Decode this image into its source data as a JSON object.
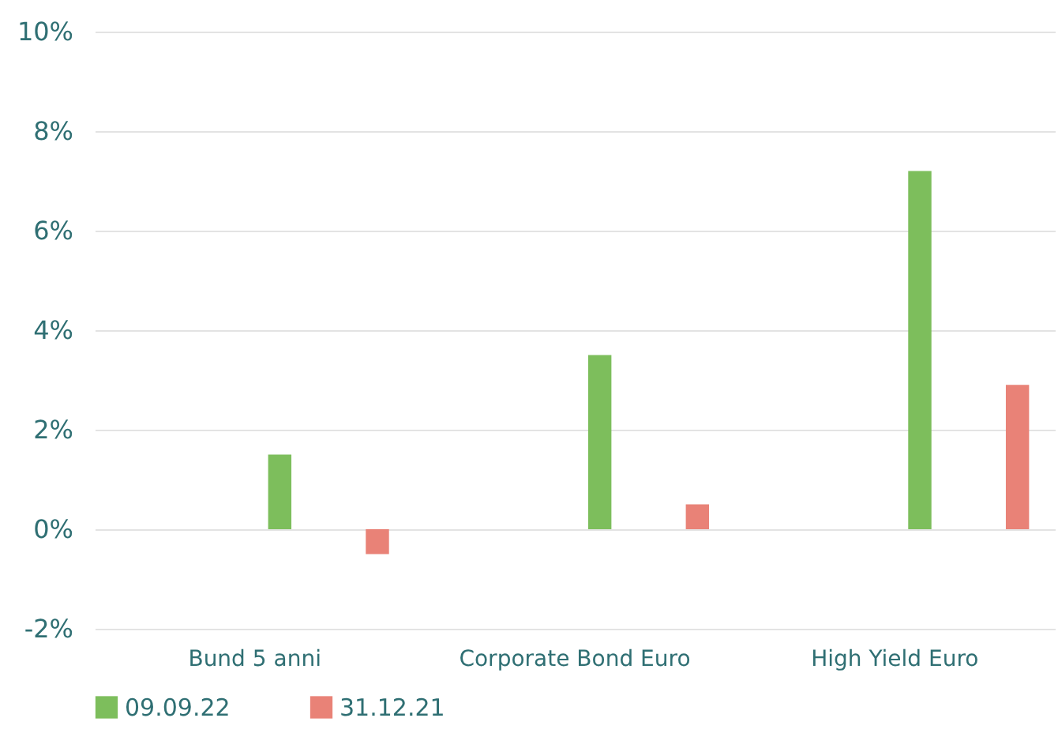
{
  "chart_data": {
    "type": "bar",
    "categories": [
      "Bund 5 anni",
      "Corporate Bond Euro",
      "High Yield Euro"
    ],
    "series": [
      {
        "name": "09.09.22",
        "color": "#7dbe5c",
        "values": [
          1.5,
          3.5,
          7.2
        ]
      },
      {
        "name": "31.12.21",
        "color": "#e98277",
        "values": [
          -0.5,
          0.5,
          2.9
        ]
      }
    ],
    "ylim": [
      -2,
      10
    ],
    "yticks": [
      {
        "value": -2,
        "label": "-2%"
      },
      {
        "value": 0,
        "label": "0%"
      },
      {
        "value": 2,
        "label": "2%"
      },
      {
        "value": 4,
        "label": "4%"
      },
      {
        "value": 6,
        "label": "6%"
      },
      {
        "value": 8,
        "label": "8%"
      },
      {
        "value": 10,
        "label": "10%"
      }
    ],
    "grid": "y",
    "legend": "bottom"
  }
}
